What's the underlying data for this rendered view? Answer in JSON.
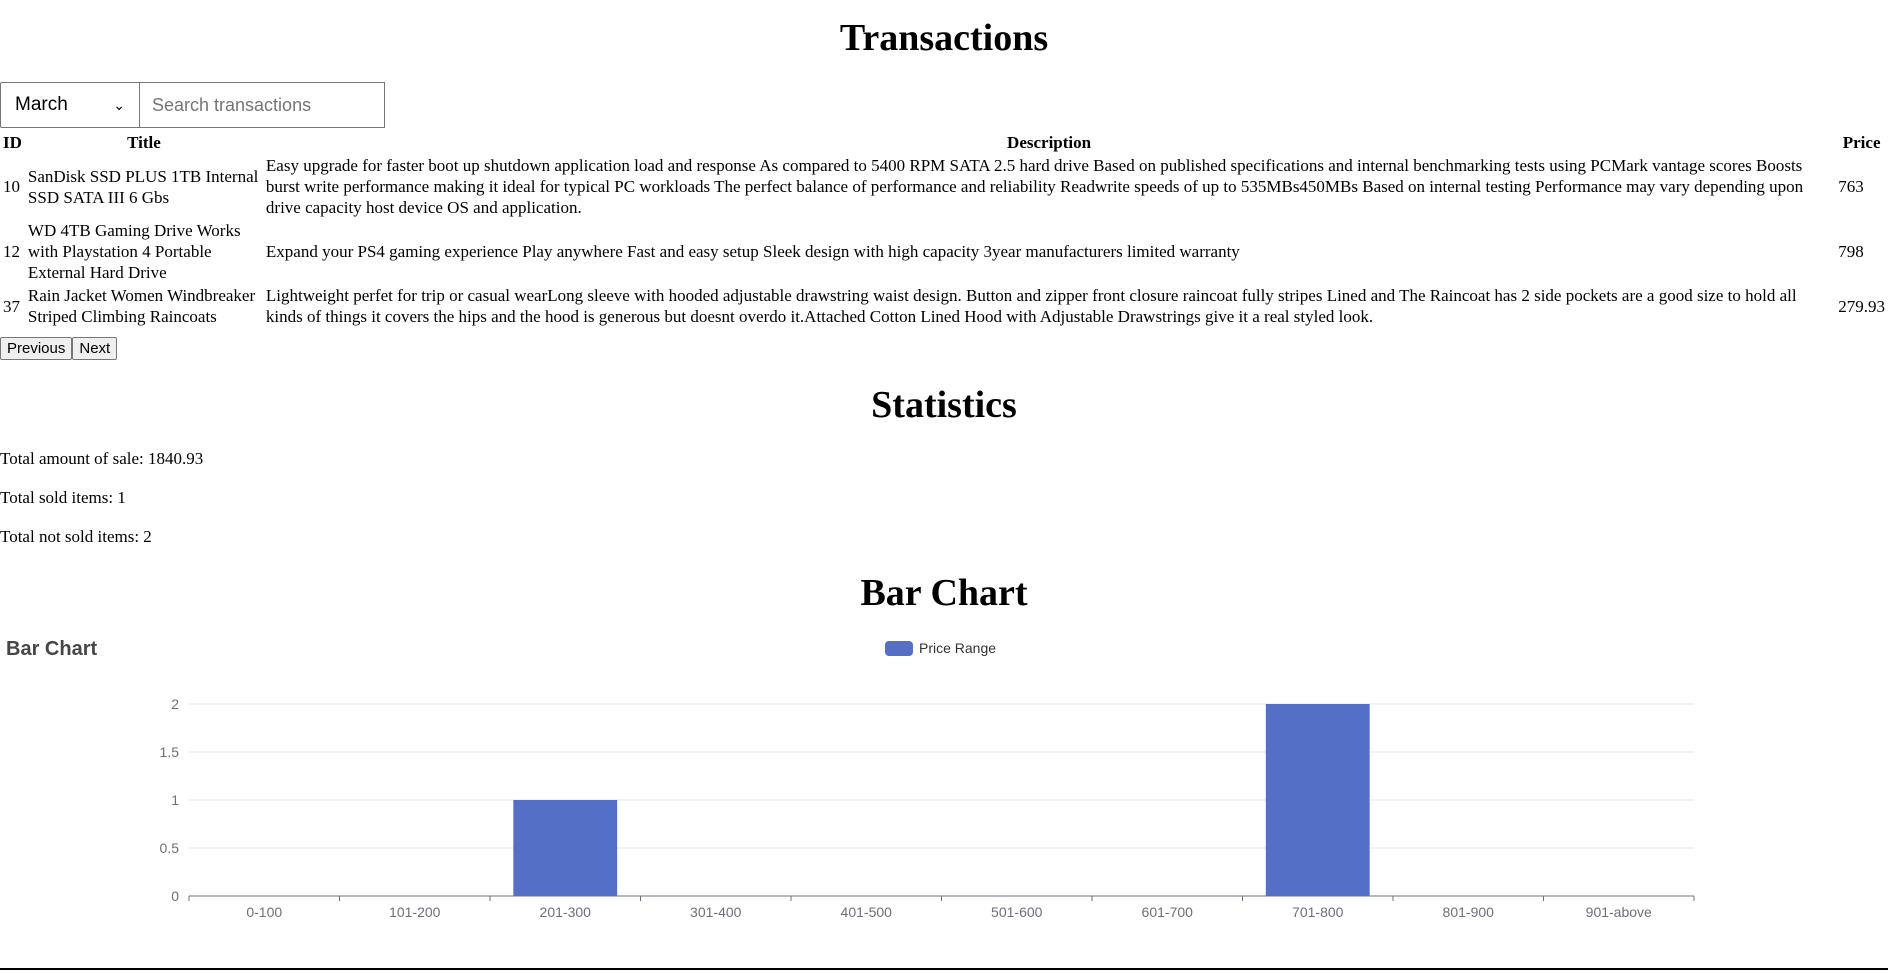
{
  "transactions": {
    "title": "Transactions",
    "month_selected": "March",
    "search_placeholder": "Search transactions",
    "headers": {
      "id": "ID",
      "title": "Title",
      "description": "Description",
      "price": "Price"
    },
    "rows": [
      {
        "id": "10",
        "title": "SanDisk SSD PLUS 1TB Internal SSD SATA III 6 Gbs",
        "description": "Easy upgrade for faster boot up shutdown application load and response As compared to 5400 RPM SATA 2.5 hard drive Based on published specifications and internal benchmarking tests using PCMark vantage scores Boosts burst write performance making it ideal for typical PC workloads The perfect balance of performance and reliability Readwrite speeds of up to 535MBs450MBs Based on internal testing Performance may vary depending upon drive capacity host device OS and application.",
        "price": "763"
      },
      {
        "id": "12",
        "title": "WD 4TB Gaming Drive Works with Playstation 4 Portable External Hard Drive",
        "description": "Expand your PS4 gaming experience Play anywhere Fast and easy setup Sleek design with high capacity 3year manufacturers limited warranty",
        "price": "798"
      },
      {
        "id": "37",
        "title": "Rain Jacket Women Windbreaker Striped Climbing Raincoats",
        "description": "Lightweight perfet for trip or casual wearLong sleeve with hooded adjustable drawstring waist design. Button and zipper front closure raincoat fully stripes Lined and The Raincoat has 2 side pockets are a good size to hold all kinds of things it covers the hips and the hood is generous but doesnt overdo it.Attached Cotton Lined Hood with Adjustable Drawstrings give it a real styled look.",
        "price": "279.93"
      }
    ],
    "previous_label": "Previous",
    "next_label": "Next"
  },
  "statistics": {
    "title": "Statistics",
    "total_sale": "Total amount of sale: 1840.93",
    "total_sold": "Total sold items: 1",
    "total_not_sold": "Total not sold items: 2"
  },
  "bar_chart": {
    "heading": "Bar Chart"
  },
  "colors": {
    "bar": "#5470c6",
    "axis": "#6e7079",
    "grid": "#e0e6f1",
    "label": "#6e7079"
  },
  "chart_data": {
    "type": "bar",
    "title": "Bar Chart",
    "legend": [
      "Price Range"
    ],
    "legend_position": "top-center",
    "categories": [
      "0-100",
      "101-200",
      "201-300",
      "301-400",
      "401-500",
      "501-600",
      "601-700",
      "701-800",
      "801-900",
      "901-above"
    ],
    "series": [
      {
        "name": "Price Range",
        "values": [
          0,
          0,
          1,
          0,
          0,
          0,
          0,
          2,
          0,
          0
        ]
      }
    ],
    "yticks": [
      "0",
      "0.5",
      "1",
      "1.5",
      "2"
    ],
    "ylim": [
      0,
      2
    ],
    "grid": true
  }
}
